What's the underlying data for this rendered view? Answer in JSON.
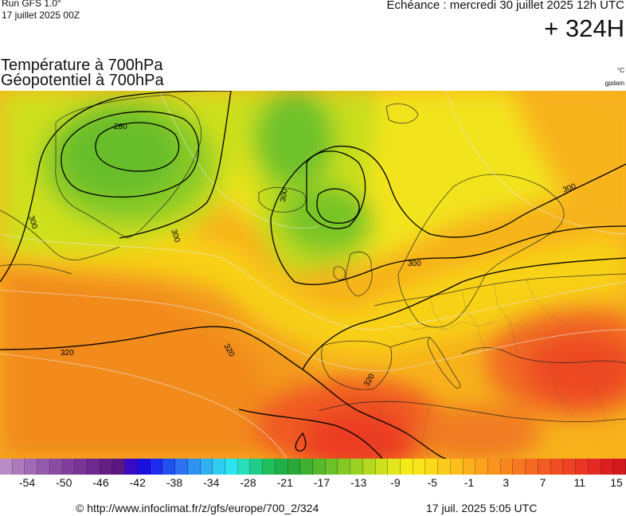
{
  "header": {
    "run_label": "Run GFS 1.0°",
    "run_date": "17 juillet 2025 00Z",
    "echeance": "Echéance : mercredi 30 juillet 2025 12h UTC",
    "lead_time": "+ 324H"
  },
  "titles": {
    "line1": "Température à 700hPa",
    "line2": "Géopotentiel à 700hPa",
    "unit_temp": "°C",
    "unit_geo": "gpdam"
  },
  "map": {
    "contour_labels": [
      "280",
      "300",
      "300",
      "300",
      "300",
      "300",
      "320",
      "320",
      "320"
    ]
  },
  "legend": {
    "colors": [
      "#b98bc4",
      "#ad7bbc",
      "#a06bb4",
      "#945aab",
      "#8a4ca3",
      "#803f9c",
      "#773494",
      "#6d298d",
      "#641f86",
      "#5a1780",
      "#3a08c8",
      "#1a10e0",
      "#1d2cf0",
      "#2050f0",
      "#2a72f0",
      "#2e92f0",
      "#30b0f0",
      "#30ccf0",
      "#2ee4f0",
      "#28e0b8",
      "#20cc88",
      "#1fc05c",
      "#20b048",
      "#2aa83a",
      "#40b030",
      "#56b82c",
      "#6cc028",
      "#84c826",
      "#9cd024",
      "#b4d820",
      "#cce01e",
      "#e2e61c",
      "#f4ea1a",
      "#fae41a",
      "#fcd81a",
      "#fccc1c",
      "#fcbe1c",
      "#fcb01c",
      "#fca21c",
      "#fa941e",
      "#f8861e",
      "#f67820",
      "#f46a20",
      "#f25c22",
      "#f04e22",
      "#ee4224",
      "#ec3624",
      "#e42a22",
      "#dc2020",
      "#d4181e"
    ],
    "ticks": [
      "-54",
      "-50",
      "-46",
      "-42",
      "-38",
      "-34",
      "-28",
      "-21",
      "-17",
      "-13",
      "-9",
      "-5",
      "-1",
      "3",
      "7",
      "11",
      "15"
    ]
  },
  "footer": {
    "url": "© http://www.infoclimat.fr/z/gfs/europe/700_2/324",
    "timestamp": "17 juil. 2025  5:05 UTC"
  }
}
